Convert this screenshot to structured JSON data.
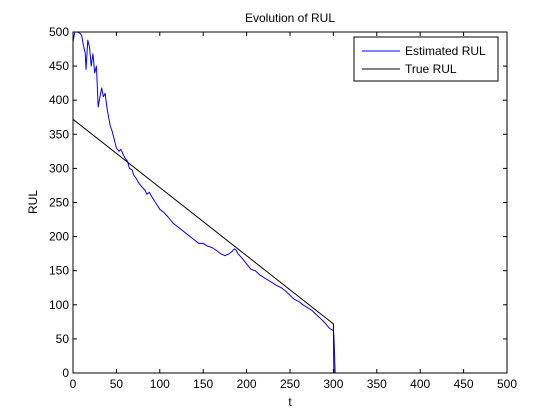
{
  "chart_data": {
    "type": "line",
    "title": "Evolution of RUL",
    "xlabel": "t",
    "ylabel": "RUL",
    "xlim": [
      0,
      500
    ],
    "ylim": [
      0,
      500
    ],
    "xticks": [
      0,
      50,
      100,
      150,
      200,
      250,
      300,
      350,
      400,
      450,
      500
    ],
    "yticks": [
      0,
      50,
      100,
      150,
      200,
      250,
      300,
      350,
      400,
      450,
      500
    ],
    "grid": false,
    "legend_position": "top-right",
    "series": [
      {
        "name": "Estimated RUL",
        "color": "#0000ff",
        "x": [
          0,
          2,
          5,
          8,
          10,
          12,
          14,
          15,
          17,
          19,
          21,
          23,
          25,
          27,
          29,
          31,
          33,
          35,
          37,
          39,
          41,
          43,
          45,
          47,
          50,
          53,
          55,
          58,
          60,
          63,
          65,
          68,
          70,
          73,
          75,
          78,
          80,
          83,
          85,
          88,
          90,
          95,
          100,
          105,
          110,
          115,
          120,
          125,
          130,
          135,
          140,
          145,
          150,
          155,
          160,
          165,
          170,
          175,
          180,
          183,
          186,
          188,
          190,
          195,
          200,
          205,
          210,
          215,
          220,
          225,
          230,
          235,
          240,
          245,
          250,
          255,
          260,
          265,
          270,
          275,
          280,
          285,
          290,
          295,
          300,
          300.5,
          301,
          301.5,
          302
        ],
        "y": [
          485,
          500,
          500,
          498,
          495,
          480,
          470,
          445,
          488,
          478,
          450,
          468,
          440,
          450,
          390,
          405,
          418,
          405,
          410,
          390,
          375,
          362,
          355,
          345,
          330,
          325,
          328,
          320,
          315,
          310,
          300,
          298,
          290,
          285,
          280,
          275,
          272,
          268,
          262,
          265,
          260,
          250,
          240,
          235,
          228,
          220,
          215,
          210,
          205,
          200,
          195,
          190,
          190,
          186,
          184,
          180,
          175,
          172,
          175,
          178,
          182,
          180,
          175,
          168,
          160,
          152,
          150,
          144,
          140,
          136,
          132,
          128,
          125,
          120,
          114,
          108,
          105,
          100,
          96,
          92,
          86,
          80,
          74,
          66,
          62,
          55,
          40,
          20,
          0
        ]
      },
      {
        "name": "True RUL",
        "color": "#000000",
        "x": [
          0,
          300,
          300.6
        ],
        "y": [
          372,
          72,
          0
        ]
      }
    ]
  }
}
